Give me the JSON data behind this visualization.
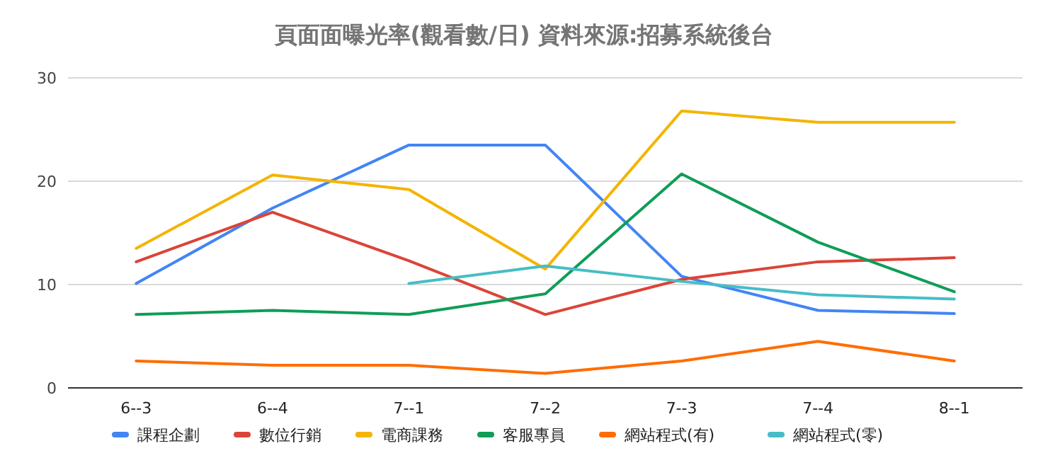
{
  "chart_data": {
    "type": "line",
    "title": "頁面面曝光率(觀看數/日)  資料來源:招募系統後台",
    "categories": [
      "6--3",
      "6--4",
      "7--1",
      "7--2",
      "7--3",
      "7--4",
      "8--1"
    ],
    "series": [
      {
        "name": "課程企劃",
        "color": "#4285f4",
        "values": [
          10.1,
          17.4,
          23.5,
          23.5,
          10.8,
          7.5,
          7.2
        ]
      },
      {
        "name": "數位行銷",
        "color": "#db4437",
        "values": [
          12.2,
          17.0,
          12.3,
          7.1,
          10.5,
          12.2,
          12.6
        ]
      },
      {
        "name": "電商課務",
        "color": "#f4b400",
        "values": [
          13.5,
          20.6,
          19.2,
          11.5,
          26.8,
          25.7,
          25.7
        ]
      },
      {
        "name": "客服專員",
        "color": "#0f9d58",
        "values": [
          7.1,
          7.5,
          7.1,
          9.1,
          20.7,
          14.1,
          9.3
        ]
      },
      {
        "name": "網站程式(有)",
        "color": "#ff6d01",
        "values": [
          2.6,
          2.2,
          2.2,
          1.4,
          2.6,
          4.5,
          2.6
        ]
      },
      {
        "name": "網站程式(零)",
        "color": "#46bdc6",
        "values": [
          null,
          null,
          10.1,
          11.8,
          10.3,
          9.0,
          8.6
        ]
      }
    ],
    "ylim": [
      0,
      30
    ],
    "yticks": [
      0,
      10,
      20,
      30
    ],
    "grid": "y",
    "legend": "bottom",
    "marker": "none",
    "line_style": "solid"
  }
}
